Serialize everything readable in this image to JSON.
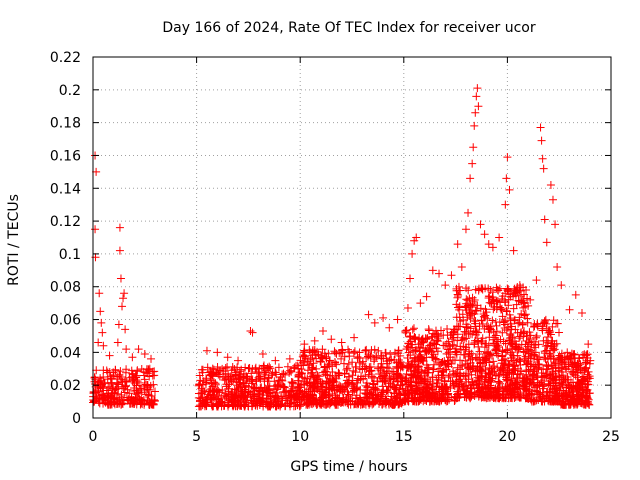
{
  "chart_data": {
    "type": "scatter",
    "title": "Day 166 of 2024, Rate Of TEC Index for receiver ucor",
    "xlabel": "GPS time / hours",
    "ylabel": "ROTI / TECUs",
    "xlim": [
      0,
      25
    ],
    "ylim": [
      0,
      0.22
    ],
    "xticks": [
      0,
      5,
      10,
      15,
      20,
      25
    ],
    "yticks": [
      0,
      0.02,
      0.04,
      0.06,
      0.08,
      0.1,
      0.12,
      0.14,
      0.16,
      0.18,
      0.2,
      0.22
    ],
    "grid": true,
    "marker": "+",
    "color": "#ff0000",
    "series": [
      {
        "name": "",
        "points": [
          [
            0.1,
            0.16
          ],
          [
            0.15,
            0.15
          ],
          [
            0.1,
            0.115
          ],
          [
            0.12,
            0.098
          ],
          [
            0.3,
            0.076
          ],
          [
            0.35,
            0.065
          ],
          [
            0.4,
            0.058
          ],
          [
            0.45,
            0.052
          ],
          [
            0.25,
            0.046
          ],
          [
            0.5,
            0.044
          ],
          [
            1.3,
            0.116
          ],
          [
            1.3,
            0.102
          ],
          [
            1.35,
            0.085
          ],
          [
            1.5,
            0.076
          ],
          [
            1.45,
            0.073
          ],
          [
            1.4,
            0.068
          ],
          [
            1.25,
            0.057
          ],
          [
            1.55,
            0.054
          ],
          [
            1.2,
            0.046
          ],
          [
            1.6,
            0.042
          ],
          [
            2.2,
            0.042
          ],
          [
            2.5,
            0.039
          ],
          [
            2.8,
            0.036
          ],
          [
            0.8,
            0.038
          ],
          [
            1.9,
            0.037
          ],
          [
            5.5,
            0.041
          ],
          [
            6.0,
            0.04
          ],
          [
            6.5,
            0.037
          ],
          [
            7.0,
            0.035
          ],
          [
            7.6,
            0.053
          ],
          [
            7.7,
            0.052
          ],
          [
            8.2,
            0.039
          ],
          [
            8.8,
            0.035
          ],
          [
            9.5,
            0.036
          ],
          [
            10.2,
            0.045
          ],
          [
            10.7,
            0.047
          ],
          [
            11.1,
            0.053
          ],
          [
            11.5,
            0.048
          ],
          [
            12.0,
            0.046
          ],
          [
            12.6,
            0.049
          ],
          [
            13.3,
            0.063
          ],
          [
            13.6,
            0.058
          ],
          [
            14.0,
            0.061
          ],
          [
            14.3,
            0.055
          ],
          [
            14.7,
            0.06
          ],
          [
            15.2,
            0.067
          ],
          [
            15.3,
            0.085
          ],
          [
            15.4,
            0.1
          ],
          [
            15.5,
            0.108
          ],
          [
            15.6,
            0.11
          ],
          [
            15.8,
            0.07
          ],
          [
            16.1,
            0.074
          ],
          [
            16.4,
            0.09
          ],
          [
            16.7,
            0.088
          ],
          [
            17.0,
            0.081
          ],
          [
            17.3,
            0.087
          ],
          [
            17.6,
            0.106
          ],
          [
            17.8,
            0.092
          ],
          [
            18.0,
            0.115
          ],
          [
            18.1,
            0.125
          ],
          [
            18.2,
            0.146
          ],
          [
            18.3,
            0.155
          ],
          [
            18.35,
            0.165
          ],
          [
            18.4,
            0.178
          ],
          [
            18.45,
            0.186
          ],
          [
            18.5,
            0.196
          ],
          [
            18.55,
            0.201
          ],
          [
            18.6,
            0.19
          ],
          [
            18.7,
            0.118
          ],
          [
            18.9,
            0.112
          ],
          [
            19.1,
            0.106
          ],
          [
            19.3,
            0.104
          ],
          [
            19.6,
            0.11
          ],
          [
            19.9,
            0.13
          ],
          [
            19.95,
            0.146
          ],
          [
            20.0,
            0.159
          ],
          [
            20.1,
            0.139
          ],
          [
            20.3,
            0.102
          ],
          [
            20.6,
            0.081
          ],
          [
            20.9,
            0.078
          ],
          [
            21.1,
            0.072
          ],
          [
            21.4,
            0.084
          ],
          [
            21.6,
            0.177
          ],
          [
            21.65,
            0.169
          ],
          [
            21.7,
            0.158
          ],
          [
            21.75,
            0.152
          ],
          [
            21.8,
            0.121
          ],
          [
            21.9,
            0.107
          ],
          [
            22.1,
            0.142
          ],
          [
            22.2,
            0.133
          ],
          [
            22.3,
            0.118
          ],
          [
            22.4,
            0.092
          ],
          [
            22.6,
            0.081
          ],
          [
            23.0,
            0.066
          ],
          [
            23.3,
            0.075
          ],
          [
            23.6,
            0.064
          ],
          [
            23.9,
            0.045
          ],
          [
            24.0,
            0.035
          ]
        ],
        "bands": [
          {
            "x0": 0.0,
            "x1": 3.0,
            "ymin": 0.008,
            "ymax": 0.03,
            "n": 260
          },
          {
            "x0": 5.1,
            "x1": 10.0,
            "ymin": 0.007,
            "ymax": 0.032,
            "n": 520
          },
          {
            "x0": 10.0,
            "x1": 15.0,
            "ymin": 0.008,
            "ymax": 0.042,
            "n": 620
          },
          {
            "x0": 15.0,
            "x1": 17.5,
            "ymin": 0.01,
            "ymax": 0.055,
            "n": 420
          },
          {
            "x0": 17.5,
            "x1": 21.0,
            "ymin": 0.012,
            "ymax": 0.08,
            "n": 720
          },
          {
            "x0": 21.0,
            "x1": 22.5,
            "ymin": 0.01,
            "ymax": 0.06,
            "n": 260
          },
          {
            "x0": 22.5,
            "x1": 24.0,
            "ymin": 0.008,
            "ymax": 0.04,
            "n": 260
          }
        ]
      }
    ]
  }
}
